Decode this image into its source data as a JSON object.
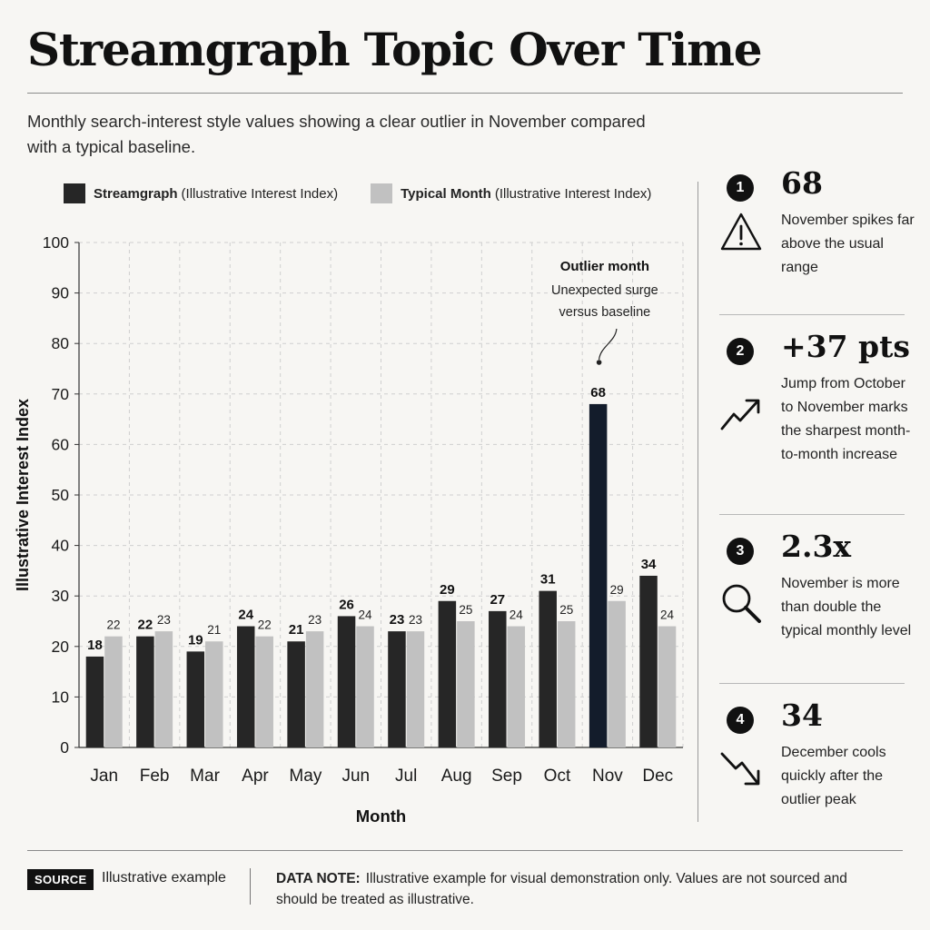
{
  "header": {
    "title": "Streamgraph Topic Over Time",
    "subtitle": "Monthly search-interest style values showing a clear outlier in November compared with a typical baseline."
  },
  "legend": {
    "series_1_bold": "Streamgraph",
    "series_1_rest": "(Illustrative Interest Index)",
    "series_2_bold": "Typical Month",
    "series_2_rest": "(Illustrative Interest Index)"
  },
  "annotation": {
    "title": "Outlier month",
    "line1": "Unexpected surge",
    "line2": "versus baseline"
  },
  "chart_data": {
    "type": "bar",
    "title": "Streamgraph Topic Over Time",
    "xlabel": "Month",
    "ylabel": "Illustrative Interest Index",
    "categories": [
      "Jan",
      "Feb",
      "Mar",
      "Apr",
      "May",
      "Jun",
      "Jul",
      "Aug",
      "Sep",
      "Oct",
      "Nov",
      "Dec"
    ],
    "series": [
      {
        "name": "Streamgraph",
        "values": [
          18,
          22,
          19,
          24,
          21,
          26,
          23,
          29,
          27,
          31,
          68,
          34
        ]
      },
      {
        "name": "Typical Month",
        "values": [
          22,
          23,
          21,
          22,
          23,
          24,
          23,
          25,
          24,
          25,
          29,
          24
        ]
      }
    ],
    "ylim": [
      0,
      100
    ],
    "yticks": [
      0,
      10,
      20,
      30,
      40,
      50,
      60,
      70,
      80,
      90,
      100
    ],
    "grid": true,
    "legend_position": "top",
    "highlight_category": "Nov"
  },
  "colors": {
    "series_1": "#262626",
    "series_2": "#c1c1c1",
    "highlight": "#131c2b",
    "grid": "#cfcfcf",
    "axis": "#333333"
  },
  "insights": [
    {
      "num": "1",
      "value": "68",
      "icon": "warning-icon",
      "text": "November spikes far above the usual range"
    },
    {
      "num": "2",
      "value": "+37 pts",
      "icon": "trending-up-icon",
      "text": "Jump from October to November marks the sharpest month-to-month increase"
    },
    {
      "num": "3",
      "value": "2.3x",
      "icon": "magnifier-icon",
      "text": "November is more than double the typical monthly level"
    },
    {
      "num": "4",
      "value": "34",
      "icon": "trending-down-icon",
      "text": "December cools quickly after the outlier peak"
    }
  ],
  "footer": {
    "source_label": "SOURCE",
    "source_text": "Illustrative example",
    "note_label": "DATA NOTE:",
    "note_text": "Illustrative example for visual demonstration only. Values are not sourced and should be treated as illustrative."
  }
}
